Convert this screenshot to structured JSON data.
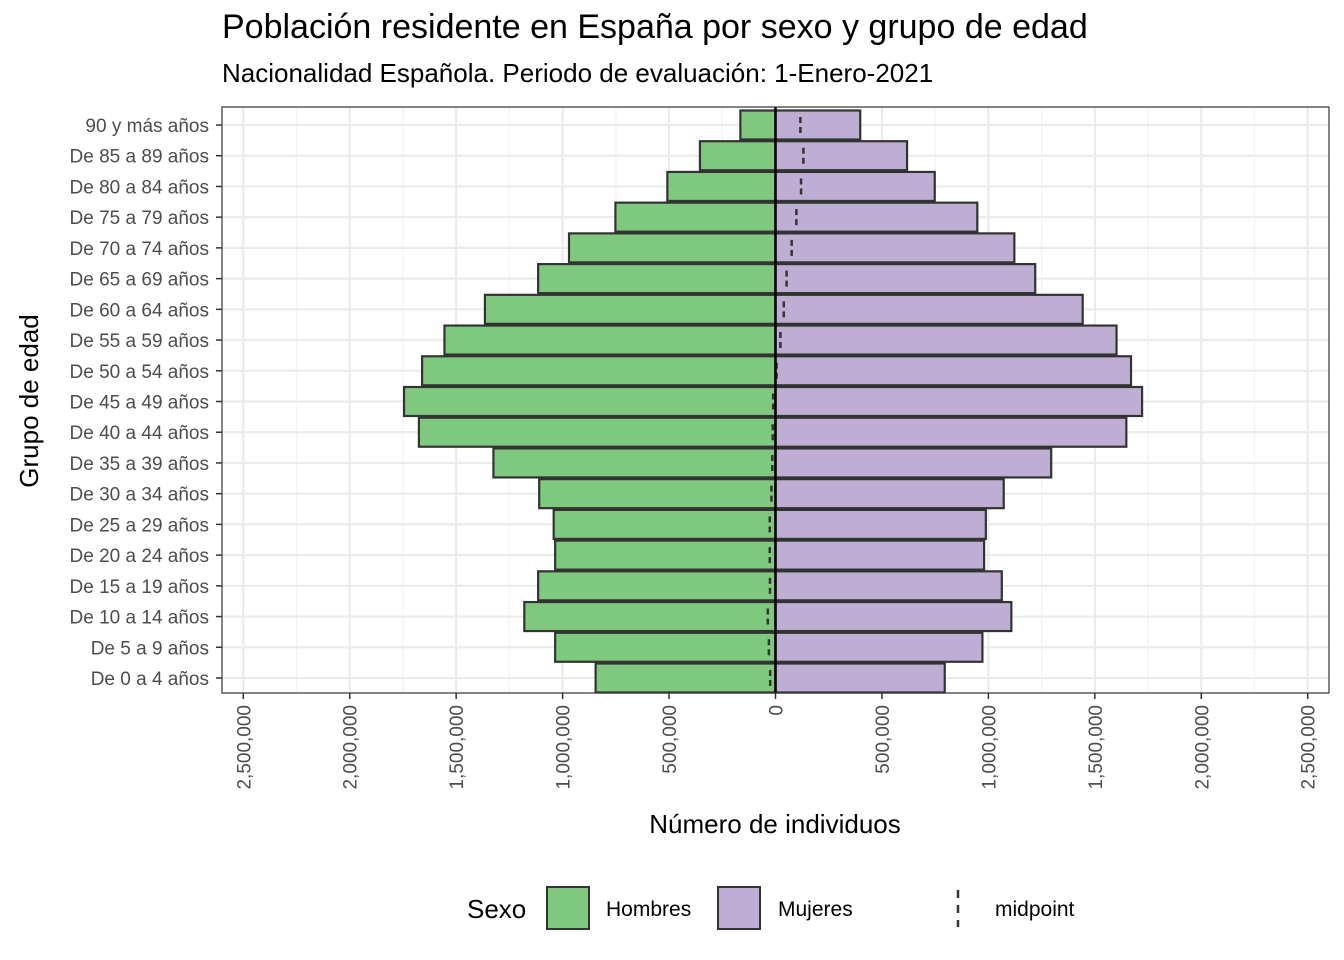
{
  "chart_data": {
    "type": "bar",
    "orientation": "horizontal-population-pyramid",
    "title": "Población residente en España por sexo y grupo de edad",
    "subtitle": "Nacionalidad Española. Periodo de evaluación: 1-Enero-2021",
    "xlabel": "Número de individuos",
    "ylabel": "Grupo de edad",
    "xlim": [
      -2600000,
      2600000
    ],
    "x_ticks": [
      -2500000,
      -2000000,
      -1500000,
      -1000000,
      -500000,
      0,
      500000,
      1000000,
      1500000,
      2000000,
      2500000
    ],
    "x_tick_labels": [
      "2,500,000",
      "2,000,000",
      "1,500,000",
      "1,000,000",
      "500,000",
      "0",
      "500,000",
      "1,000,000",
      "1,500,000",
      "2,000,000",
      "2,500,000"
    ],
    "categories": [
      "De 0 a 4 años",
      "De 5 a 9 años",
      "De 10 a 14 años",
      "De 15 a 19 años",
      "De 20 a 24 años",
      "De 25 a 29 años",
      "De 30 a 34 años",
      "De 35 a 39 años",
      "De 40 a 44 años",
      "De 45 a 49 años",
      "De 50 a 54 años",
      "De 55 a 59 años",
      "De 60 a 64 años",
      "De 65 a 69 años",
      "De 70 a 74 años",
      "De 75 a 79 años",
      "De 80 a 84 años",
      "De 85 a 89 años",
      "90 y más años"
    ],
    "series": [
      {
        "name": "Hombres",
        "color": "#7fc97f",
        "side": "left",
        "values": [
          845000,
          1035000,
          1180000,
          1115000,
          1035000,
          1042000,
          1110000,
          1325000,
          1675000,
          1745000,
          1660000,
          1555000,
          1365000,
          1115000,
          970000,
          752000,
          508000,
          355000,
          165000
        ]
      },
      {
        "name": "Mujeres",
        "color": "#beaed4",
        "side": "right",
        "values": [
          795000,
          972000,
          1108000,
          1063000,
          980000,
          988000,
          1072000,
          1295000,
          1648000,
          1722000,
          1670000,
          1602000,
          1443000,
          1220000,
          1122000,
          948000,
          748000,
          618000,
          398000
        ]
      }
    ],
    "midpoint": {
      "name": "midpoint",
      "values": [
        -25000,
        -31000,
        -36000,
        -26000,
        -27000,
        -27000,
        -19000,
        -15000,
        -13000,
        -11000,
        5000,
        23000,
        39000,
        52000,
        76000,
        98000,
        120000,
        131000,
        117000
      ]
    },
    "legend": {
      "title": "Sexo",
      "position": "bottom",
      "items": [
        "Hombres",
        "Mujeres",
        "midpoint"
      ]
    },
    "grid": true
  }
}
